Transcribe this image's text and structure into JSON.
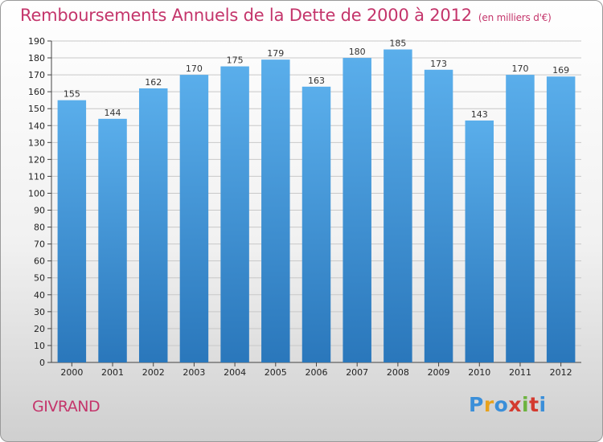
{
  "header": {
    "title": "Remboursements Annuels de la Dette de 2000 à 2012",
    "subtitle": "(en milliers d'€)"
  },
  "footer": {
    "commune": "GIVRAND",
    "logo_letters": [
      "P",
      "r",
      "o",
      "x",
      "i",
      "t",
      "i"
    ],
    "logo_colors": [
      "#3b8fd9",
      "#e8a21c",
      "#3b8fd9",
      "#d43a2f",
      "#6cb33f",
      "#d43a2f",
      "#3b8fd9"
    ]
  },
  "colors": {
    "title": "#c4356b",
    "bar_top": "#5aaeeb",
    "bar_bottom": "#2a77bb",
    "grid": "#c8c8c8"
  },
  "chart_data": {
    "type": "bar",
    "title": "Remboursements Annuels de la Dette de 2000 à 2012",
    "subtitle": "(en milliers d'€)",
    "xlabel": "",
    "ylabel": "",
    "categories": [
      "2000",
      "2001",
      "2002",
      "2003",
      "2004",
      "2005",
      "2006",
      "2007",
      "2008",
      "2009",
      "2010",
      "2011",
      "2012"
    ],
    "values": [
      155,
      144,
      162,
      170,
      175,
      179,
      163,
      180,
      185,
      173,
      143,
      170,
      169
    ],
    "ylim": [
      0,
      190
    ],
    "yticks": [
      0,
      10,
      20,
      30,
      40,
      50,
      60,
      70,
      80,
      90,
      100,
      110,
      120,
      130,
      140,
      150,
      160,
      170,
      180,
      190
    ],
    "grid": true,
    "legend": "none"
  }
}
